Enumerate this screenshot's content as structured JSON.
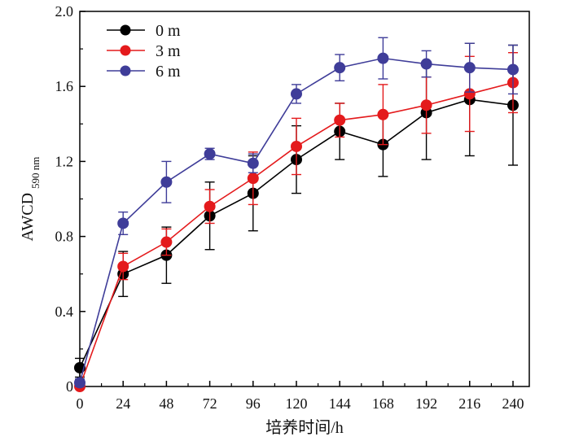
{
  "chart_data": {
    "type": "line",
    "title": "",
    "xlabel": "培养时间/h",
    "ylabel": "AWCD",
    "ylabel_subscript": "590 nm",
    "x": [
      0,
      24,
      48,
      72,
      96,
      120,
      144,
      168,
      192,
      216,
      240
    ],
    "xticks": [
      "0",
      "24",
      "48",
      "72",
      "96",
      "120",
      "144",
      "168",
      "192",
      "216",
      "240"
    ],
    "yticks": [
      "0",
      "0.4",
      "0.8",
      "1.2",
      "1.6",
      "2.0"
    ],
    "xlim": [
      0,
      240
    ],
    "ylim": [
      0,
      2.0
    ],
    "grid": false,
    "legend_position": "top-left",
    "series": [
      {
        "name": "0 m",
        "color": "#000000",
        "values": [
          0.1,
          0.6,
          0.7,
          0.91,
          1.03,
          1.21,
          1.36,
          1.29,
          1.46,
          1.53,
          1.5
        ],
        "errors": [
          0.05,
          0.12,
          0.15,
          0.18,
          0.2,
          0.18,
          0.15,
          0.17,
          0.25,
          0.3,
          0.32
        ]
      },
      {
        "name": "3 m",
        "color": "#e41a1c",
        "values": [
          0.0,
          0.64,
          0.77,
          0.96,
          1.11,
          1.28,
          1.42,
          1.45,
          1.5,
          1.56,
          1.62
        ],
        "errors": [
          0.02,
          0.07,
          0.07,
          0.09,
          0.14,
          0.15,
          0.09,
          0.16,
          0.15,
          0.2,
          0.16
        ]
      },
      {
        "name": "6 m",
        "color": "#3f3d99",
        "values": [
          0.02,
          0.87,
          1.09,
          1.24,
          1.19,
          1.56,
          1.7,
          1.75,
          1.72,
          1.7,
          1.69
        ],
        "errors": [
          0.02,
          0.06,
          0.11,
          0.03,
          0.05,
          0.05,
          0.07,
          0.11,
          0.07,
          0.13,
          0.13
        ]
      }
    ]
  }
}
